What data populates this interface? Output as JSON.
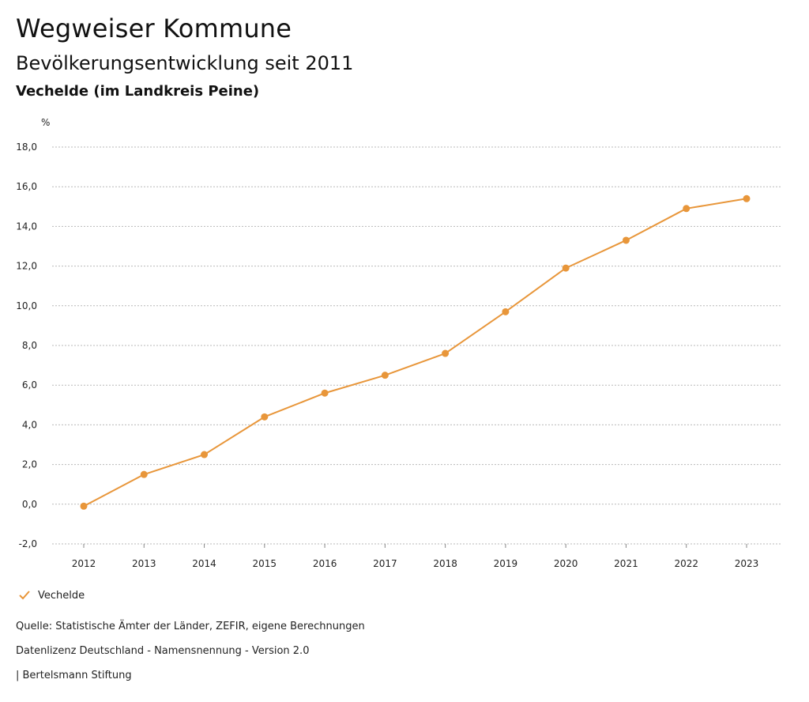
{
  "header": {
    "title": "Wegweiser Kommune",
    "subtitle": "Bevölkerungsentwicklung seit 2011",
    "region": "Vechelde (im Landkreis Peine)"
  },
  "chart_data": {
    "type": "line",
    "title": "Bevölkerungsentwicklung seit 2011",
    "xlabel": "",
    "ylabel": "%",
    "ylim": [
      -2.0,
      18.0
    ],
    "yticks": [
      -2.0,
      0.0,
      2.0,
      4.0,
      6.0,
      8.0,
      10.0,
      12.0,
      14.0,
      16.0,
      18.0
    ],
    "ytick_labels": [
      "-2,0",
      "0,0",
      "2,0",
      "4,0",
      "6,0",
      "8,0",
      "10,0",
      "12,0",
      "14,0",
      "16,0",
      "18,0"
    ],
    "categories": [
      "2012",
      "2013",
      "2014",
      "2015",
      "2016",
      "2017",
      "2018",
      "2019",
      "2020",
      "2021",
      "2022",
      "2023"
    ],
    "grid": true,
    "legend_position": "bottom-left",
    "series": [
      {
        "name": "Vechelde",
        "color": "#E8963A",
        "values": [
          -0.1,
          1.5,
          2.5,
          4.4,
          5.6,
          6.5,
          7.6,
          9.7,
          11.9,
          13.3,
          14.9,
          15.4
        ]
      }
    ]
  },
  "legend": {
    "items": [
      {
        "label": "Vechelde",
        "icon": "check-icon",
        "color": "#E8963A"
      }
    ]
  },
  "footer": {
    "source": "Quelle: Statistische Ämter der Länder, ZEFIR, eigene Berechnungen",
    "license": "Datenlizenz Deutschland - Namensnennung - Version 2.0",
    "brand": "| Bertelsmann Stiftung"
  }
}
